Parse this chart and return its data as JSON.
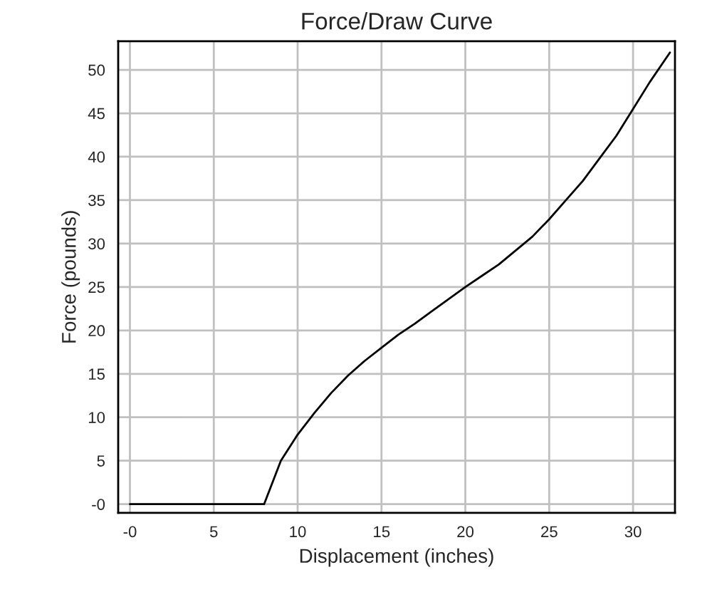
{
  "chart_data": {
    "type": "line",
    "title": "Force/Draw Curve",
    "xlabel": "Displacement (inches)",
    "ylabel": "Force (pounds)",
    "x": [
      0,
      8,
      8.5,
      9,
      10,
      11,
      12,
      13,
      14,
      15,
      16,
      17,
      18,
      19,
      20,
      21,
      22,
      23,
      24,
      25,
      26,
      27,
      28,
      29,
      30,
      31,
      32.2
    ],
    "series": [
      {
        "color": "#000000",
        "values": [
          0,
          0,
          2.5,
          5,
          8,
          10.5,
          12.8,
          14.8,
          16.5,
          18,
          19.5,
          20.8,
          22.2,
          23.6,
          25,
          26.3,
          27.6,
          29.2,
          30.8,
          32.8,
          35,
          37.2,
          39.8,
          42.4,
          45.5,
          48.6,
          52
        ]
      }
    ],
    "xlim": [
      -0.7,
      32.5
    ],
    "ylim": [
      -1,
      53.3
    ],
    "xticks": [
      {
        "value": 0,
        "label": "-0"
      },
      5,
      10,
      15,
      20,
      25,
      30
    ],
    "yticks": [
      {
        "value": 0,
        "label": "-0"
      },
      5,
      10,
      15,
      20,
      25,
      30,
      35,
      40,
      45,
      50
    ],
    "grid": true,
    "marker": "none",
    "line_style": "solid"
  }
}
